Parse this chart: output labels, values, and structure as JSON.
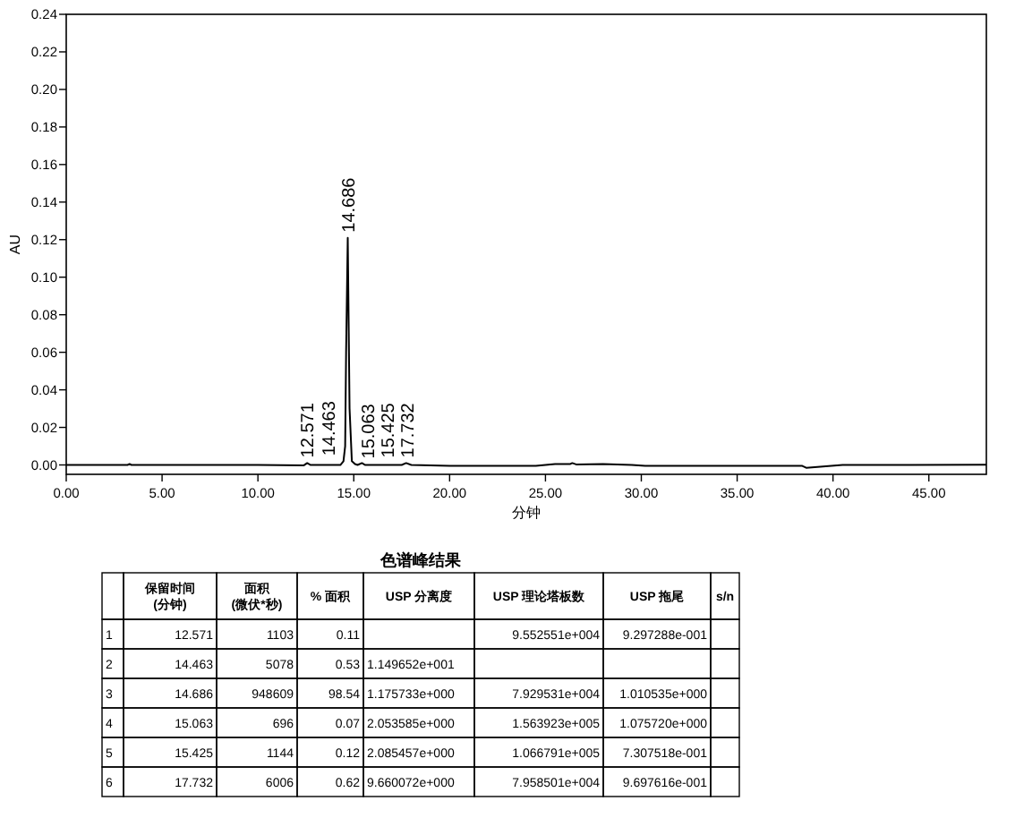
{
  "chart_data": {
    "type": "line",
    "xlabel": "分钟",
    "ylabel": "AU",
    "color": "#000000",
    "x": [
      0,
      3.2,
      3.3,
      3.4,
      10,
      12.4,
      12.571,
      12.75,
      14.3,
      14.463,
      14.55,
      14.6,
      14.686,
      14.78,
      14.9,
      15.063,
      15.2,
      15.425,
      15.6,
      17.5,
      17.732,
      18,
      20,
      24.5,
      25.5,
      26.3,
      26.4,
      26.6,
      28,
      29.5,
      30.2,
      38.4,
      38.6,
      40.5,
      48
    ],
    "values": [
      0,
      0,
      0.0005,
      0,
      0,
      -0.0002,
      0.001,
      0,
      0,
      0.002,
      0.01,
      0.06,
      0.121,
      0.03,
      0.002,
      0.0005,
      0,
      0.001,
      0,
      0,
      0.001,
      0,
      -0.0005,
      -0.0005,
      0.0005,
      0.0005,
      0.001,
      0.0003,
      0.0005,
      0,
      -0.0005,
      -0.0005,
      -0.0015,
      0,
      0.0001
    ],
    "xlim": [
      0,
      48
    ],
    "ylim": [
      -0.005,
      0.24
    ],
    "xticks": [
      {
        "value": 0,
        "label": "0.00"
      },
      {
        "value": 5,
        "label": "5.00"
      },
      {
        "value": 10,
        "label": "10.00"
      },
      {
        "value": 15,
        "label": "15.00"
      },
      {
        "value": 20,
        "label": "20.00"
      },
      {
        "value": 25,
        "label": "25.00"
      },
      {
        "value": 30,
        "label": "30.00"
      },
      {
        "value": 35,
        "label": "35.00"
      },
      {
        "value": 40,
        "label": "40.00"
      },
      {
        "value": 45,
        "label": "45.00"
      }
    ],
    "yticks": [
      {
        "value": 0,
        "label": "0.00"
      },
      {
        "value": 0.02,
        "label": "0.02"
      },
      {
        "value": 0.04,
        "label": "0.04"
      },
      {
        "value": 0.06,
        "label": "0.06"
      },
      {
        "value": 0.08,
        "label": "0.08"
      },
      {
        "value": 0.1,
        "label": "0.10"
      },
      {
        "value": 0.12,
        "label": "0.12"
      },
      {
        "value": 0.14,
        "label": "0.14"
      },
      {
        "value": 0.16,
        "label": "0.16"
      },
      {
        "value": 0.18,
        "label": "0.18"
      },
      {
        "value": 0.2,
        "label": "0.20"
      },
      {
        "value": 0.22,
        "label": "0.22"
      },
      {
        "value": 0.24,
        "label": "0.24"
      }
    ],
    "annotations": [
      {
        "text": "12.571",
        "x": 12.571,
        "y": 0.001
      },
      {
        "text": "14.463",
        "x": 14.463,
        "y": 0.002
      },
      {
        "text": "14.686",
        "x": 14.686,
        "y": 0.121
      },
      {
        "text": "15.063",
        "x": 15.063,
        "y": 0.0005
      },
      {
        "text": "15.425",
        "x": 15.425,
        "y": 0.001
      },
      {
        "text": "17.732",
        "x": 17.732,
        "y": 0.001
      },
      "色谱峰结果",
      null,
      "保留时间\n(分钟)",
      "面积\n(微伏*秒)",
      "% 面积",
      "USP 分离度",
      "USP 理论塔板数",
      "USP 拖尾",
      "s/n",
      "1",
      "12.571",
      "1103",
      "0.11",
      null,
      "9.552551e+004",
      "9.297288e-001",
      null,
      "2",
      "14.463",
      "5078",
      "0.53",
      "1.149652e+001",
      null,
      null,
      null,
      "3",
      "14.686",
      "948609",
      "98.54",
      "1.175733e+000",
      "7.929531e+004",
      "1.010535e+000",
      null,
      "4",
      "15.063",
      "696",
      "0.07",
      "2.053585e+000",
      "1.563923e+005",
      "1.075720e+000",
      null,
      "5",
      "15.425",
      "1144",
      "0.12",
      "2.085457e+000",
      "1.066791e+005",
      "7.307518e-001",
      null,
      "6",
      "17.732",
      "6006",
      "0.62",
      "9.660072e+000",
      "7.958501e+004",
      "9.697616e-001",
      null
    ]
  }
}
